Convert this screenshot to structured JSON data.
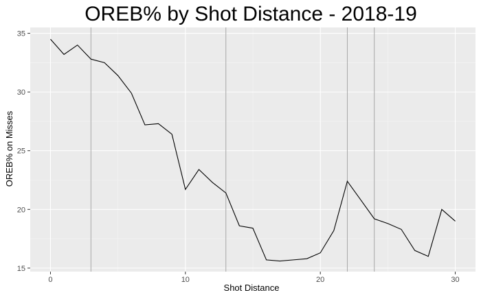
{
  "chart_data": {
    "type": "line",
    "title": "OREB% by Shot Distance - 2018-19",
    "xlabel": "Shot Distance",
    "ylabel": "OREB% on Misses",
    "xlim": [
      -1.5,
      31.5
    ],
    "ylim": [
      14.7,
      35.5
    ],
    "x_ticks": [
      0,
      10,
      20,
      30
    ],
    "y_ticks": [
      15,
      20,
      25,
      30,
      35
    ],
    "x_tick_labels": [
      "0",
      "10",
      "20",
      "30"
    ],
    "y_tick_labels": [
      "15",
      "20",
      "25",
      "30",
      "35"
    ],
    "reference_lines_x": [
      3,
      13,
      22,
      24
    ],
    "grid": true,
    "colors": {
      "panel": "#ebebeb",
      "grid_major": "#ffffff",
      "grid_minor": "#f5f5f5",
      "line": "#000000",
      "reference_line": "#a6a6a6"
    },
    "series": [
      {
        "x": [
          0,
          1,
          2,
          3,
          4,
          5,
          6,
          7,
          8,
          9,
          10,
          11,
          12,
          13,
          14,
          15,
          16,
          17,
          18,
          19,
          20,
          21,
          22,
          23,
          24,
          25,
          26,
          27,
          28,
          29,
          30
        ],
        "values": [
          34.5,
          33.2,
          34.0,
          32.8,
          32.5,
          31.4,
          29.9,
          27.2,
          27.3,
          26.4,
          21.7,
          23.4,
          22.3,
          21.4,
          18.6,
          18.4,
          15.7,
          15.6,
          15.7,
          15.8,
          16.3,
          18.2,
          22.4,
          20.8,
          19.2,
          18.8,
          18.3,
          16.5,
          16.0,
          20.0,
          19.0
        ]
      }
    ]
  }
}
